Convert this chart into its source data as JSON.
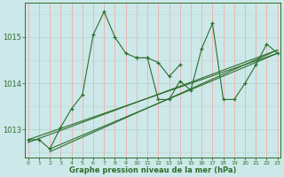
{
  "xlabel": "Graphe pression niveau de la mer (hPa)",
  "background_color": "#cce8e8",
  "grid_color_h": "#b8d8d8",
  "grid_color_v": "#e8b8b8",
  "line_color": "#2d6e2d",
  "hours": [
    0,
    1,
    2,
    3,
    4,
    5,
    6,
    7,
    8,
    9,
    10,
    11,
    12,
    13,
    14,
    15,
    16,
    17,
    18,
    19,
    20,
    21,
    22,
    23
  ],
  "series1_x": [
    0,
    1,
    2,
    3,
    4,
    5,
    6,
    7,
    8,
    9,
    10,
    11,
    12,
    13,
    14
  ],
  "series1_y": [
    1012.78,
    1012.78,
    1012.58,
    1013.05,
    1013.45,
    1013.75,
    1015.05,
    1015.55,
    1015.0,
    1014.65,
    1014.55,
    1014.55,
    1014.45,
    1014.15,
    1014.4
  ],
  "series2_x": [
    10,
    11,
    12,
    13,
    14,
    15,
    16,
    17,
    18,
    19,
    20,
    21,
    22,
    23
  ],
  "series2_y": [
    1014.55,
    1014.55,
    1013.65,
    1013.65,
    1014.05,
    1013.85,
    1014.75,
    1015.3,
    1013.65,
    1013.65,
    1014.0,
    1014.4,
    1014.85,
    1014.65
  ],
  "trend_lines": [
    {
      "x": [
        0,
        23
      ],
      "y": [
        1012.78,
        1014.65
      ]
    },
    {
      "x": [
        0,
        23
      ],
      "y": [
        1012.72,
        1014.72
      ]
    },
    {
      "x": [
        2,
        23
      ],
      "y": [
        1012.58,
        1014.65
      ]
    },
    {
      "x": [
        2,
        23
      ],
      "y": [
        1012.52,
        1014.72
      ]
    }
  ],
  "ylim": [
    1012.4,
    1015.75
  ],
  "yticks": [
    1013,
    1014,
    1015
  ],
  "xlim": [
    -0.3,
    23.3
  ]
}
